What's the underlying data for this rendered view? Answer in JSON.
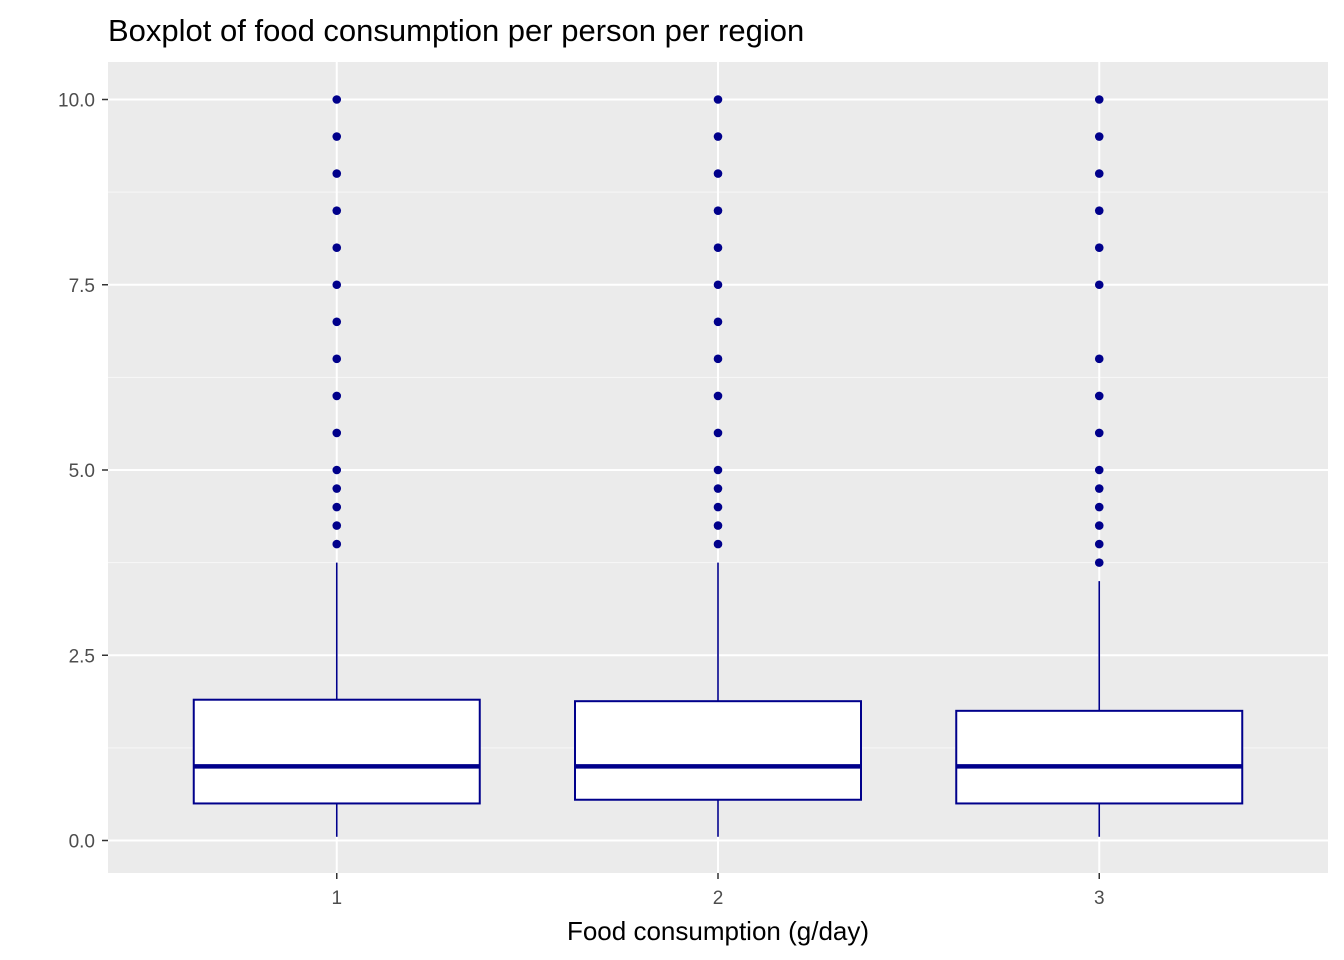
{
  "chart_data": {
    "type": "boxplot",
    "title": "Boxplot of food consumption per person per region",
    "xlabel": "Food consumption (g/day)",
    "ylabel": "",
    "ylim": [
      -0.45,
      10.5
    ],
    "y_ticks": [
      0.0,
      2.5,
      5.0,
      7.5,
      10.0
    ],
    "y_tick_labels": [
      "0.0",
      "2.5",
      "5.0",
      "7.5",
      "10.0"
    ],
    "categories": [
      "1",
      "2",
      "3"
    ],
    "grid": true,
    "legend": "none",
    "colors": {
      "panel_background": "#ebebeb",
      "grid_major": "#ffffff",
      "grid_minor": "#f7f7f7",
      "box_outline": "#00008b",
      "box_fill": "#ffffff",
      "outlier": "#00008b"
    },
    "boxes": [
      {
        "category": "1",
        "whisker_low": 0.05,
        "q1": 0.5,
        "median": 1.0,
        "q3": 1.9,
        "whisker_high": 3.75,
        "outliers": [
          4.0,
          4.25,
          4.5,
          4.75,
          5.0,
          5.5,
          6.0,
          6.5,
          7.0,
          7.5,
          8.0,
          8.5,
          9.0,
          9.5,
          10.0
        ]
      },
      {
        "category": "2",
        "whisker_low": 0.05,
        "q1": 0.55,
        "median": 1.0,
        "q3": 1.88,
        "whisker_high": 3.75,
        "outliers": [
          4.0,
          4.25,
          4.5,
          4.75,
          5.0,
          5.5,
          6.0,
          6.5,
          7.0,
          7.5,
          8.0,
          8.5,
          9.0,
          9.5,
          10.0
        ]
      },
      {
        "category": "3",
        "whisker_low": 0.05,
        "q1": 0.5,
        "median": 1.0,
        "q3": 1.75,
        "whisker_high": 3.5,
        "outliers": [
          3.75,
          4.0,
          4.25,
          4.5,
          4.75,
          5.0,
          5.5,
          6.0,
          6.5,
          7.5,
          8.0,
          8.5,
          9.0,
          9.5,
          10.0
        ]
      }
    ]
  }
}
